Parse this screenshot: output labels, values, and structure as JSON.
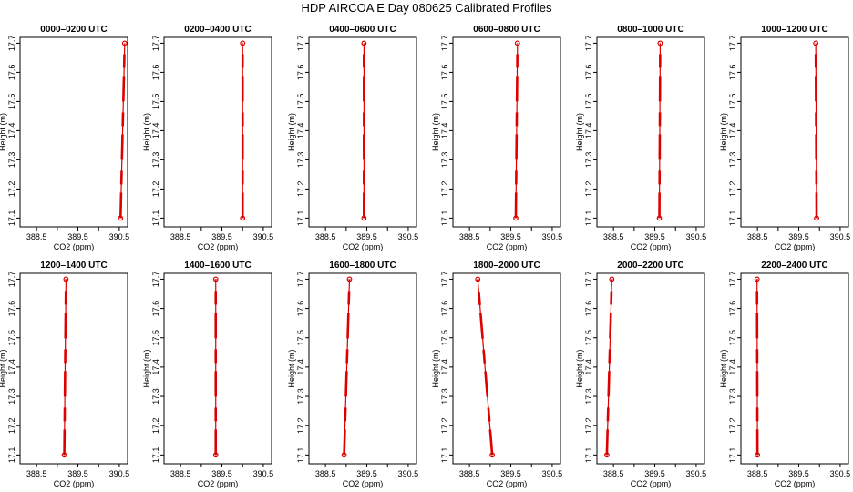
{
  "title": "HDP AIRCOA E  Day 080625  Calibrated Profiles",
  "chart_data": {
    "type": "line",
    "xlabel": "CO2 (ppm)",
    "ylabel": "Height (m)",
    "xlim": [
      388.1,
      390.7
    ],
    "ylim": [
      17.07,
      17.72
    ],
    "xticks": [
      "388.5",
      "389",
      "389.5",
      "390",
      "390.5"
    ],
    "xtick_values": [
      388.5,
      389.0,
      389.5,
      390.0,
      390.5
    ],
    "yticks": [
      "17.1",
      "17.2",
      "17.3",
      "17.4",
      "17.5",
      "17.6",
      "17.7"
    ],
    "ytick_values": [
      17.1,
      17.2,
      17.3,
      17.4,
      17.5,
      17.6,
      17.7
    ],
    "colors": {
      "profile": "#dd0000"
    },
    "panels": [
      {
        "title": "0000–0200 UTC",
        "x": [
          390.53,
          390.63
        ],
        "y": [
          17.1,
          17.7
        ]
      },
      {
        "title": "0200–0400 UTC",
        "x": [
          390.0,
          390.0
        ],
        "y": [
          17.1,
          17.7
        ]
      },
      {
        "title": "0400–0600 UTC",
        "x": [
          389.43,
          389.43
        ],
        "y": [
          17.1,
          17.7
        ]
      },
      {
        "title": "0600–0800 UTC",
        "x": [
          389.62,
          389.66
        ],
        "y": [
          17.1,
          17.7
        ]
      },
      {
        "title": "0800–1000 UTC",
        "x": [
          389.61,
          389.63
        ],
        "y": [
          17.1,
          17.7
        ]
      },
      {
        "title": "1000–1200 UTC",
        "x": [
          389.93,
          389.91
        ],
        "y": [
          17.1,
          17.7
        ]
      },
      {
        "title": "1200–1400 UTC",
        "x": [
          389.17,
          389.21
        ],
        "y": [
          17.1,
          17.7
        ]
      },
      {
        "title": "1400–1600 UTC",
        "x": [
          389.35,
          389.35
        ],
        "y": [
          17.1,
          17.7
        ]
      },
      {
        "title": "1600–1800 UTC",
        "x": [
          388.95,
          389.08
        ],
        "y": [
          17.1,
          17.7
        ]
      },
      {
        "title": "1800–2000 UTC",
        "x": [
          389.05,
          388.7
        ],
        "y": [
          17.1,
          17.7
        ]
      },
      {
        "title": "2000–2200 UTC",
        "x": [
          388.34,
          388.46
        ],
        "y": [
          17.1,
          17.7
        ]
      },
      {
        "title": "2200–2400 UTC",
        "x": [
          388.5,
          388.49
        ],
        "y": [
          17.1,
          17.7
        ]
      }
    ]
  }
}
